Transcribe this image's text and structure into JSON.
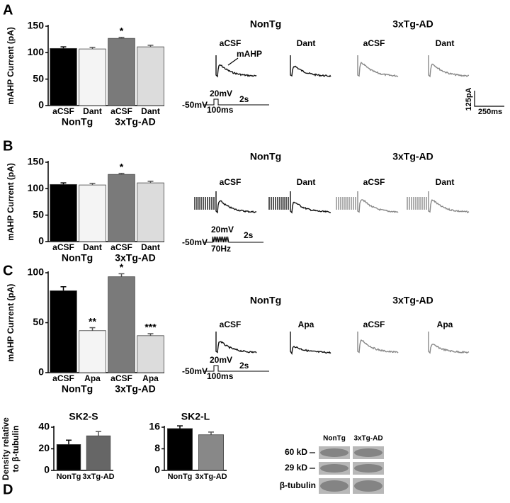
{
  "chart_data": [
    {
      "type": "bar",
      "ylabel": [
        "mAHP Current (pA)"
      ],
      "ylim": [
        0,
        150
      ],
      "yticks": [
        0,
        50,
        100,
        150
      ],
      "categories": [
        "aCSF",
        "Dant",
        "aCSF",
        "Dant"
      ],
      "groups": [
        "NonTg",
        "3xTg-AD"
      ],
      "values": [
        108,
        107,
        127,
        111
      ],
      "errors": [
        3,
        3,
        2,
        3
      ],
      "annotations": [
        null,
        null,
        "*",
        null
      ],
      "colors": [
        "#000000",
        "#f4f4f4",
        "#7a7a7a",
        "#dcdcdc"
      ]
    },
    {
      "type": "bar",
      "ylabel": [
        "mAHP Current (pA)"
      ],
      "ylim": [
        0,
        150
      ],
      "yticks": [
        0,
        50,
        100,
        150
      ],
      "categories": [
        "aCSF",
        "Dant",
        "aCSF",
        "Dant"
      ],
      "groups": [
        "NonTg",
        "3xTg-AD"
      ],
      "values": [
        108,
        107,
        127,
        111
      ],
      "errors": [
        3,
        3,
        2,
        3
      ],
      "annotations": [
        null,
        null,
        "*",
        null
      ],
      "colors": [
        "#000000",
        "#f4f4f4",
        "#7a7a7a",
        "#dcdcdc"
      ]
    },
    {
      "type": "bar",
      "ylabel": [
        "mAHP Current (pA)"
      ],
      "ylim": [
        0,
        100
      ],
      "yticks": [
        0,
        50,
        100
      ],
      "categories": [
        "aCSF",
        "Apa",
        "aCSF",
        "Apa"
      ],
      "groups": [
        "NonTg",
        "3xTg-AD"
      ],
      "values": [
        82,
        42,
        96,
        37
      ],
      "errors": [
        4,
        3,
        3,
        2
      ],
      "annotations": [
        null,
        "**",
        "*",
        "***"
      ],
      "colors": [
        "#000000",
        "#f4f4f4",
        "#7a7a7a",
        "#dcdcdc"
      ]
    },
    {
      "type": "bar",
      "title": "SK2-S",
      "ylabel": [
        "Density relative",
        "to β-tubulin"
      ],
      "ylim": [
        0,
        40
      ],
      "yticks": [
        0,
        20,
        40
      ],
      "categories": [
        "NonTg",
        "3xTg-AD"
      ],
      "values": [
        24,
        32
      ],
      "errors": [
        4,
        4
      ],
      "colors": [
        "#000000",
        "#666666"
      ]
    },
    {
      "type": "bar",
      "title": "SK2-L",
      "ylim": [
        0,
        16
      ],
      "yticks": [
        0,
        8,
        16
      ],
      "categories": [
        "NonTg",
        "3xTg-AD"
      ],
      "values": [
        15.5,
        13.2
      ],
      "errors": [
        1,
        1
      ],
      "colors": [
        "#000000",
        "#888888"
      ]
    }
  ],
  "figure": {
    "panels": [
      {
        "letter": "A",
        "headers": [
          "NonTg",
          "3xTg-AD"
        ],
        "conditions": [
          "aCSF",
          "Dant",
          "aCSF",
          "Dant"
        ],
        "callout": "mAHP",
        "protocol": [
          "-50mV",
          "20mV",
          "100ms",
          "2s"
        ],
        "scale": [
          "125pA",
          "250ms"
        ]
      },
      {
        "letter": "B",
        "headers": [
          "NonTg",
          "3xTg-AD"
        ],
        "conditions": [
          "aCSF",
          "Dant",
          "aCSF",
          "Dant"
        ],
        "protocol": [
          "-50mV",
          "20mV",
          "70Hz",
          "2s"
        ]
      },
      {
        "letter": "C",
        "headers": [
          "NonTg",
          "3xTg-AD"
        ],
        "conditions": [
          "aCSF",
          "Apa",
          "aCSF",
          "Apa"
        ],
        "protocol": [
          "-50mV",
          "20mV",
          "100ms",
          "2s"
        ]
      }
    ],
    "blot": {
      "letter": "D",
      "columns": [
        "NonTg",
        "3xTg-AD"
      ],
      "rows": [
        "60 kD",
        "29 kD",
        "β-tubulin"
      ]
    }
  }
}
